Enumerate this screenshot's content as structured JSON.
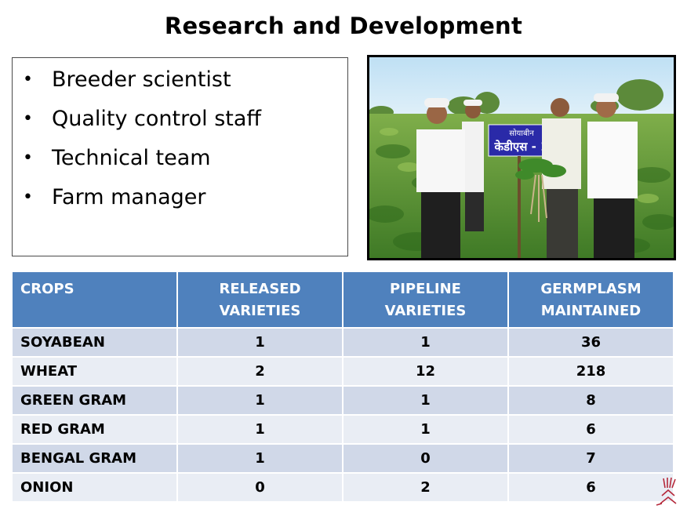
{
  "title": "Research and Development",
  "staff": [
    "Breeder scientist",
    "Quality control staff",
    "Technical team",
    "Farm manager"
  ],
  "photo": {
    "sign_line1": "सोयाबीन",
    "sign_line2": "केडीएस - 1"
  },
  "table": {
    "headers": [
      "CROPS",
      "RELEASED VARIETIES",
      "PIPELINE VARIETIES",
      "GERMPLASM MAINTAINED"
    ],
    "rows": [
      [
        "SOYABEAN",
        "1",
        "1",
        "36"
      ],
      [
        "WHEAT",
        "2",
        "12",
        "218"
      ],
      [
        "GREEN GRAM",
        "1",
        "1",
        "8"
      ],
      [
        "RED GRAM",
        "1",
        "1",
        "6"
      ],
      [
        "BENGAL GRAM",
        "1",
        "0",
        "7"
      ],
      [
        "ONION",
        "0",
        "2",
        "6"
      ]
    ]
  },
  "colors": {
    "header": "#4f81bd",
    "row_odd": "#d0d8e8",
    "row_even": "#e9edf4"
  }
}
